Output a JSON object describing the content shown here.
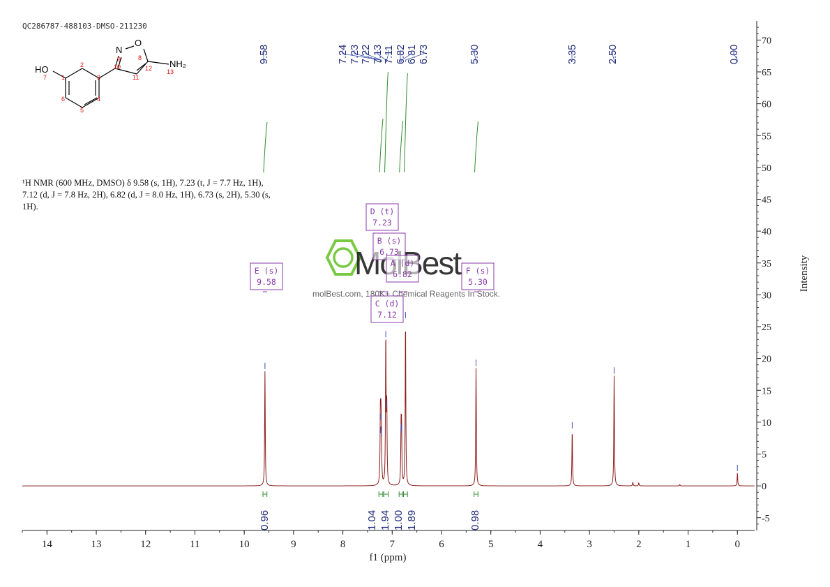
{
  "sample_id": "QC286787-488103-DMSO-211230",
  "nmr_description": "¹H NMR (600 MHz, DMSO) δ 9.58 (s, 1H), 7.23 (t, J = 7.7 Hz, 1H), 7.12 (d, J = 7.8 Hz, 2H), 6.82 (d, J = 8.0 Hz, 1H), 6.73 (s, 2H), 5.30 (s, 1H).",
  "molecule": {
    "atoms": [
      "HO",
      "N",
      "O",
      "NH₂"
    ],
    "atom_numbers": [
      "1",
      "2",
      "3",
      "4",
      "5",
      "6",
      "7",
      "8",
      "9",
      "10",
      "11",
      "12",
      "13"
    ]
  },
  "watermark": {
    "logo": "MolBest",
    "tagline": "molBest.com, 180K+ Chemical Reagents In Stock."
  },
  "colors": {
    "spectrum": "#8b1a1a",
    "integral": "#2e8b2e",
    "peak_label": "#1f2a7a",
    "multiplet_box": "#8b3aa8",
    "logo_green": "#7ac943"
  },
  "chart_data": {
    "type": "line",
    "xlabel": "f1 (ppm)",
    "ylabel": "Intensity",
    "xlim": [
      14.5,
      -0.35
    ],
    "ylim": [
      -7,
      73
    ],
    "x_axis_reversed": true,
    "x_ticks": [
      14,
      13,
      12,
      11,
      10,
      9,
      8,
      7,
      6,
      5,
      4,
      3,
      2,
      1,
      0
    ],
    "y_ticks": [
      -5,
      0,
      5,
      10,
      15,
      20,
      25,
      30,
      35,
      40,
      45,
      50,
      55,
      60,
      65,
      70
    ],
    "peaks": [
      {
        "ppm": 9.58,
        "height": 18.0
      },
      {
        "ppm": 7.24,
        "height": 10.0
      },
      {
        "ppm": 7.23,
        "height": 8.0
      },
      {
        "ppm": 7.22,
        "height": 7.5
      },
      {
        "ppm": 7.13,
        "height": 23.0
      },
      {
        "ppm": 7.11,
        "height": 12.0
      },
      {
        "ppm": 6.82,
        "height": 8.5
      },
      {
        "ppm": 6.81,
        "height": 8.0
      },
      {
        "ppm": 6.73,
        "height": 26.0
      },
      {
        "ppm": 5.3,
        "height": 18.5
      },
      {
        "ppm": 3.35,
        "height": 8.7
      },
      {
        "ppm": 2.5,
        "height": 17.3
      },
      {
        "ppm": 2.12,
        "height": 0.6
      },
      {
        "ppm": 2.0,
        "height": 0.5
      },
      {
        "ppm": 1.17,
        "height": 0.2
      },
      {
        "ppm": 0.0,
        "height": 2.0
      }
    ],
    "peak_labels": [
      "9.58",
      "7.24",
      "7.23",
      "7.22",
      "7.13",
      "7.11",
      "6.82",
      "6.81",
      "6.73",
      "5.30",
      "3.35",
      "2.50",
      "0.00"
    ],
    "integrals": [
      {
        "from": 9.62,
        "to": 9.54,
        "value": "0.96"
      },
      {
        "from": 7.27,
        "to": 7.19,
        "value": "1.04"
      },
      {
        "from": 7.17,
        "to": 7.08,
        "value": "1.94"
      },
      {
        "from": 6.86,
        "to": 6.79,
        "value": "1.00"
      },
      {
        "from": 6.77,
        "to": 6.69,
        "value": "1.89"
      },
      {
        "from": 5.34,
        "to": 5.26,
        "value": "0.98"
      }
    ],
    "multiplets": [
      {
        "name": "E (s)",
        "shift": "9.58",
        "ppm": 9.58
      },
      {
        "name": "D (t)",
        "shift": "7.23",
        "ppm": 7.23
      },
      {
        "name": "B (s)",
        "shift": "6.73",
        "ppm": 6.73
      },
      {
        "name": "A (d)",
        "shift": "6.82",
        "ppm": 6.82
      },
      {
        "name": "C (d)",
        "shift": "7.12",
        "ppm": 7.12
      },
      {
        "name": "F (s)",
        "shift": "5.30",
        "ppm": 5.3
      }
    ]
  }
}
